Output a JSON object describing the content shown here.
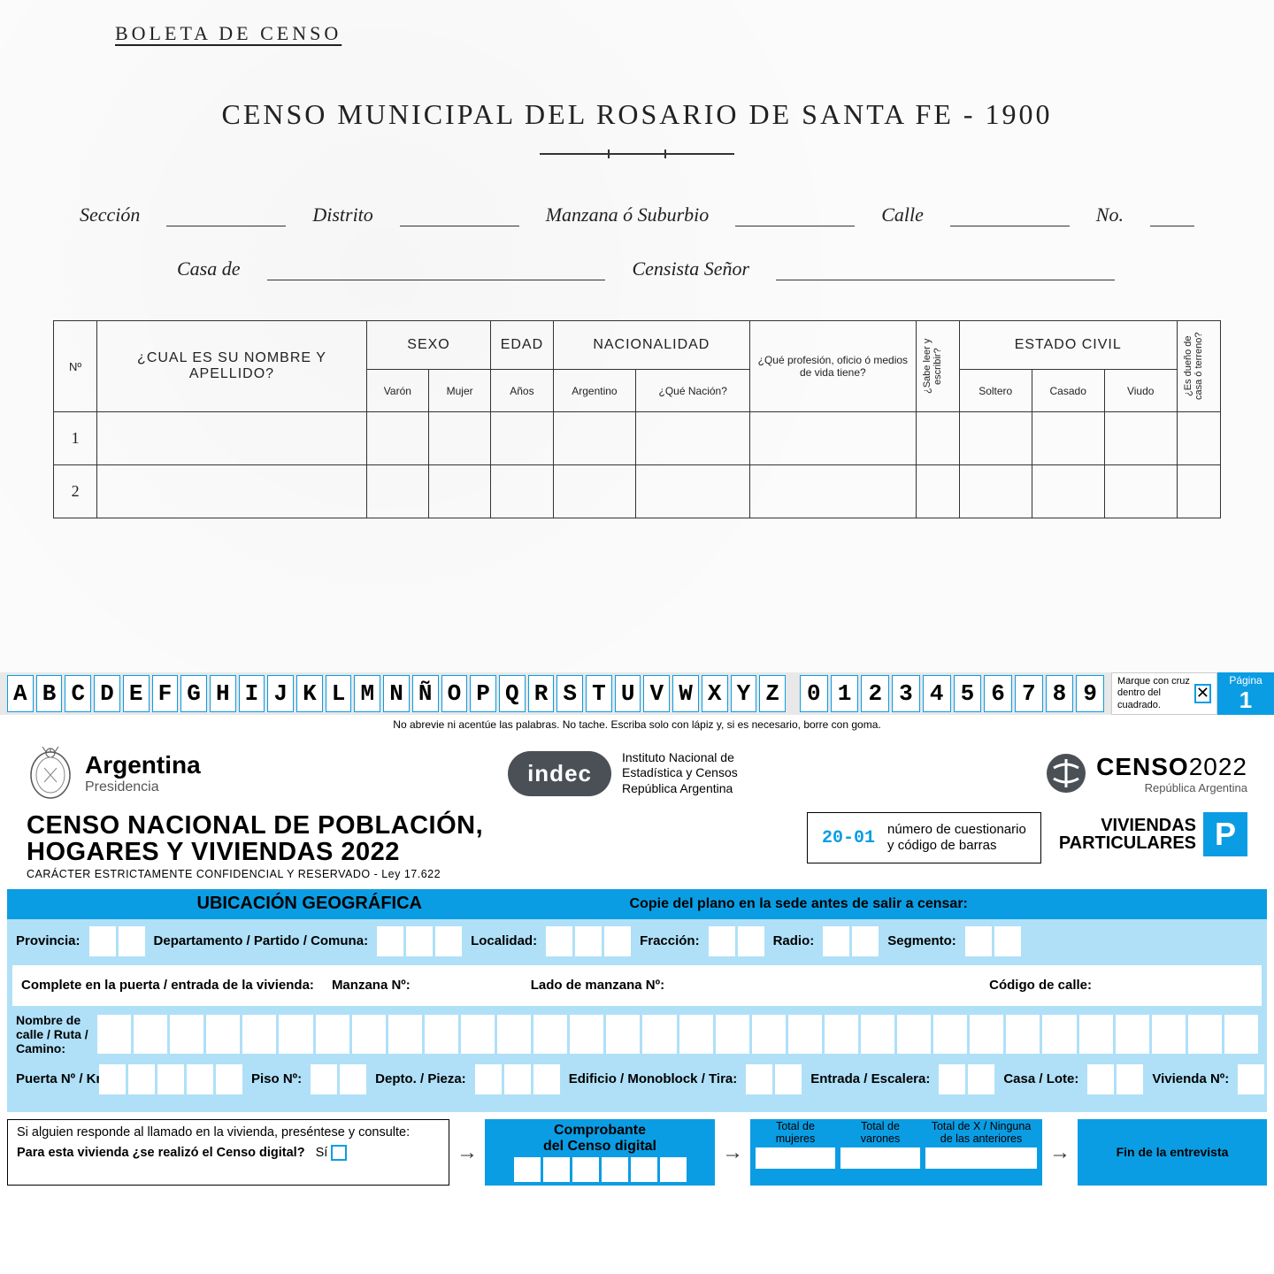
{
  "historic": {
    "doc_label": "BOLETA DE CENSO",
    "title": "CENSO MUNICIPAL DEL ROSARIO DE SANTA FE - 1900",
    "fields_line1": [
      "Sección",
      "Distrito",
      "Manzana ó Suburbio",
      "Calle",
      "No."
    ],
    "fields_line2": [
      "Casa de",
      "Censista Señor"
    ],
    "table": {
      "col_num": "Nº",
      "col_name": "¿CUAL ES SU NOMBRE Y APELLIDO?",
      "col_sex": "SEXO",
      "col_sex_sub": [
        "Varón",
        "Mujer"
      ],
      "col_age": "EDAD",
      "col_age_sub": "Años",
      "col_nat": "NACIONALIDAD",
      "col_nat_sub": [
        "Argentino",
        "¿Qué Nación?"
      ],
      "col_prof": "¿Qué profesión, oficio ó medios de vida tiene?",
      "col_read": "¿Sabe leer y escribir?",
      "col_civil": "ESTADO CIVIL",
      "col_civil_sub": [
        "Soltero",
        "Casado",
        "Viudo"
      ],
      "col_owner": "¿Es dueño de casa ó terreno?",
      "rows": [
        "1",
        "2"
      ]
    }
  },
  "modern": {
    "guide_letters": [
      "A",
      "B",
      "C",
      "D",
      "E",
      "F",
      "G",
      "H",
      "I",
      "J",
      "K",
      "L",
      "M",
      "N",
      "Ñ",
      "O",
      "P",
      "Q",
      "R",
      "S",
      "T",
      "U",
      "V",
      "W",
      "X",
      "Y",
      "Z"
    ],
    "guide_digits": [
      "0",
      "1",
      "2",
      "3",
      "4",
      "5",
      "6",
      "7",
      "8",
      "9"
    ],
    "guide_note": "Marque con cruz dentro del cuadrado.",
    "guide_sub": "No abrevie ni acentúe las palabras. No tache. Escriba solo con lápiz y, si es necesario, borre con goma.",
    "page_label": "Página",
    "page_num": "1",
    "arg_title": "Argentina",
    "arg_sub": "Presidencia",
    "indec_logo": "indec",
    "indec_lines": [
      "Instituto Nacional de",
      "Estadística y Censos",
      "República Argentina"
    ],
    "censo_brand": "CENSO",
    "censo_year": "2022",
    "censo_sub": "República Argentina",
    "main_title_l1": "CENSO NACIONAL DE POBLACIÓN,",
    "main_title_l2": "HOGARES Y VIVIENDAS 2022",
    "main_title_sub": "CARÁCTER ESTRICTAMENTE CONFIDENCIAL Y RESERVADO - Ley 17.622",
    "quest_code": "20-01",
    "quest_lines": [
      "número de cuestionario",
      "y código de barras"
    ],
    "viviendas_l1": "VIVIENDAS",
    "viviendas_l2": "PARTICULARES",
    "viviendas_p": "P",
    "ubic_header_l": "UBICACIÓN GEOGRÁFICA",
    "ubic_header_r": "Copie del plano en la sede antes de salir a censar:",
    "row1": {
      "provincia": "Provincia:",
      "depto": "Departamento / Partido / Comuna:",
      "localidad": "Localidad:",
      "fraccion": "Fracción:",
      "radio": "Radio:",
      "segmento": "Segmento:"
    },
    "row2_label": "Complete en la puerta / entrada de la vivienda:",
    "row2": {
      "manzana": "Manzana Nº:",
      "lado": "Lado de manzana Nº:",
      "codcalle": "Código de calle:"
    },
    "street_label": "Nombre de calle / Ruta / Camino:",
    "row4": {
      "puerta": "Puerta Nº / Km:",
      "piso": "Piso Nº:",
      "depto": "Depto. / Pieza:",
      "edificio": "Edificio / Monoblock / Tira:",
      "entrada": "Entrada / Escalera:",
      "casa": "Casa / Lote:",
      "vivienda": "Vivienda Nº:"
    },
    "comp": {
      "q1": "Si alguien responde al llamado en la vivienda, preséntese y consulte:",
      "q2": "Para esta vivienda ¿se realizó el Censo digital?",
      "si": "Sí",
      "comp_hdr_l1": "Comprobante",
      "comp_hdr_l2": "del Censo digital",
      "tot_muj": "Total de mujeres",
      "tot_var": "Total de varones",
      "tot_x": "Total de X / Ninguna de las anteriores",
      "fin": "Fin de la entrevista"
    },
    "colors": {
      "blue": "#0b9de3",
      "light_blue": "#afe0f8",
      "dark_gray": "#4a5055"
    }
  }
}
